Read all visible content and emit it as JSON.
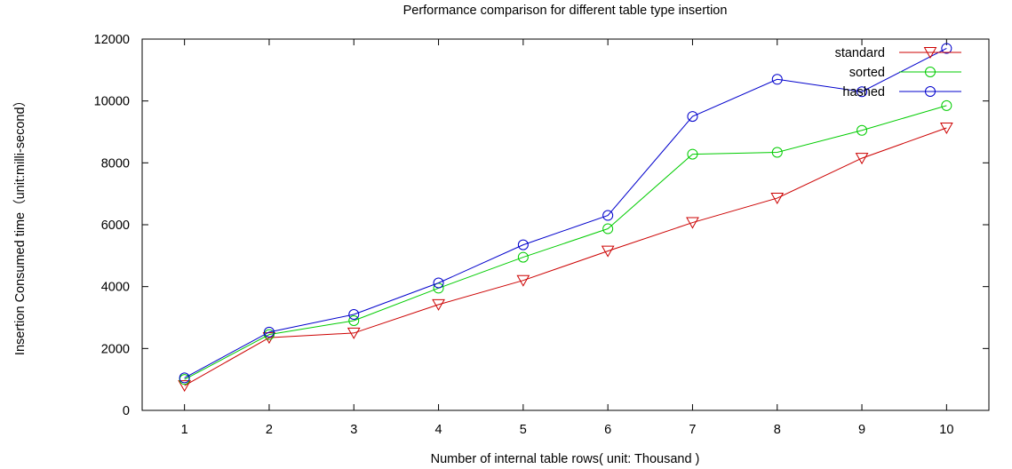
{
  "chart_data": {
    "type": "line",
    "title": "Performance comparison for different table type insertion",
    "xlabel": "Number of internal table rows( unit: Thousand )",
    "ylabel": "Insertion Consumed time（unit:milli-second）",
    "x": [
      1,
      2,
      3,
      4,
      5,
      6,
      7,
      8,
      9,
      10
    ],
    "xlim": [
      0.5,
      10.5
    ],
    "ylim": [
      0,
      12000
    ],
    "yticks": [
      0,
      2000,
      4000,
      6000,
      8000,
      10000,
      12000
    ],
    "grid": false,
    "legend_position": "top-right",
    "series": [
      {
        "name": "standard",
        "color": "#cc0000",
        "marker": "triangle-down",
        "values": [
          800,
          2350,
          2500,
          3420,
          4200,
          5150,
          6070,
          6860,
          8150,
          9130
        ]
      },
      {
        "name": "sorted",
        "color": "#00cc00",
        "marker": "circle",
        "values": [
          1000,
          2450,
          2900,
          3950,
          4950,
          5870,
          8280,
          8340,
          9050,
          9850
        ]
      },
      {
        "name": "hashed",
        "color": "#0000cc",
        "marker": "circle",
        "values": [
          1050,
          2530,
          3100,
          4120,
          5350,
          6300,
          9500,
          10700,
          10300,
          11700
        ]
      }
    ]
  }
}
